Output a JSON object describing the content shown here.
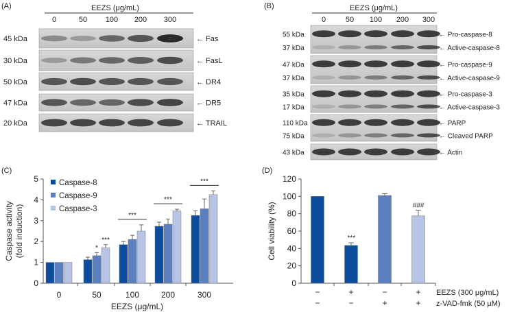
{
  "panelA": {
    "label": "(A)",
    "header": "EEZS (μg/mL)",
    "lanes": [
      "0",
      "50",
      "100",
      "200",
      "300"
    ],
    "rows": [
      {
        "kda": "45 kDa",
        "name": "← Fas",
        "intensity": [
          0.4,
          0.3,
          0.6,
          0.7,
          0.95
        ]
      },
      {
        "kda": "30 kDa",
        "name": "← FasL",
        "intensity": [
          0.3,
          0.5,
          0.6,
          0.65,
          0.75
        ]
      },
      {
        "kda": "50 kDa",
        "name": "← DR4",
        "intensity": [
          0.7,
          0.75,
          0.7,
          0.7,
          0.7
        ]
      },
      {
        "kda": "47 kDa",
        "name": "← DR5",
        "intensity": [
          0.7,
          0.6,
          0.6,
          0.75,
          0.8
        ]
      },
      {
        "kda": "20 kDa",
        "name": "← TRAIL",
        "intensity": [
          0.8,
          0.8,
          0.8,
          0.8,
          0.8
        ]
      }
    ]
  },
  "panelB": {
    "label": "(B)",
    "header": "EEZS (μg/mL)",
    "lanes": [
      "0",
      "50",
      "100",
      "200",
      "300"
    ],
    "rows": [
      {
        "kda": [
          "55 kDa",
          "37 kDa"
        ],
        "names": [
          "← Pro-caspase-8",
          "← Active-caspase-8"
        ]
      },
      {
        "kda": [
          "47 kDa",
          "37 kDa"
        ],
        "names": [
          "← Pro-caspase-9",
          "← Active-caspase-9"
        ]
      },
      {
        "kda": [
          "35 kDa",
          "17 kDa"
        ],
        "names": [
          "← Pro-caspase-3",
          "← Active-caspase-3"
        ]
      },
      {
        "kda": [
          "110 kDa",
          "75 kDa"
        ],
        "names": [
          "← PARP",
          "← Cleaved PARP"
        ]
      },
      {
        "kda": [
          "43 kDa"
        ],
        "names": [
          "← Actin"
        ]
      }
    ]
  },
  "chart_data": [
    {
      "panel": "(C)",
      "type": "bar",
      "categories": [
        "0",
        "50",
        "100",
        "200",
        "300"
      ],
      "xlabel": "EEZS (μg/mL)",
      "ylabel": [
        "Caspase activity",
        "(fold induction)"
      ],
      "ylim": [
        0,
        5
      ],
      "yticks": [
        "0",
        "1",
        "2",
        "3",
        "4",
        "5"
      ],
      "legend": "top-left",
      "series": [
        {
          "name": "Caspase-8",
          "color": "#0b4d9c",
          "values": [
            1,
            1.13,
            1.85,
            2.73,
            3.25
          ],
          "errors": [
            0,
            0.12,
            0.15,
            0.2,
            0.22
          ]
        },
        {
          "name": "Caspase-9",
          "color": "#5b7fc0",
          "values": [
            1,
            1.32,
            2.1,
            2.83,
            3.57
          ],
          "errors": [
            0,
            0.15,
            0.2,
            0.25,
            0.47
          ]
        },
        {
          "name": "Caspase-3",
          "color": "#b8c4e6",
          "values": [
            1,
            1.7,
            2.5,
            3.47,
            4.25
          ],
          "errors": [
            0,
            0.15,
            0.3,
            0.08,
            0.18
          ]
        }
      ],
      "annotations": [
        {
          "group": 1,
          "series": 1,
          "text": "*"
        },
        {
          "group": 1,
          "series": 2,
          "text": "***"
        },
        {
          "group": 2,
          "text": "***"
        },
        {
          "group": 3,
          "text": "***"
        },
        {
          "group": 4,
          "text": "***"
        }
      ]
    },
    {
      "panel": "(D)",
      "type": "bar",
      "ylabel": "Cell viability (%)",
      "ylim": [
        0,
        120
      ],
      "yticks": [
        "0",
        "20",
        "40",
        "60",
        "80",
        "100",
        "120"
      ],
      "values": [
        100,
        43.5,
        101,
        77.5
      ],
      "errors": [
        0,
        3,
        2,
        6.5
      ],
      "colors": [
        "#0b4d9c",
        "#0b4d9c",
        "#5b7fc0",
        "#b8c4e6"
      ],
      "annotations": [
        "",
        "***",
        "",
        "###"
      ],
      "conditions": [
        {
          "label": "EEZS (300 μg/mL)",
          "signs": [
            "−",
            "+",
            "−",
            "+"
          ]
        },
        {
          "label": "z-VAD-fmk (50 μM)",
          "signs": [
            "−",
            "−",
            "+",
            "+"
          ]
        }
      ],
      "highlight_color": "#e8202a"
    }
  ]
}
